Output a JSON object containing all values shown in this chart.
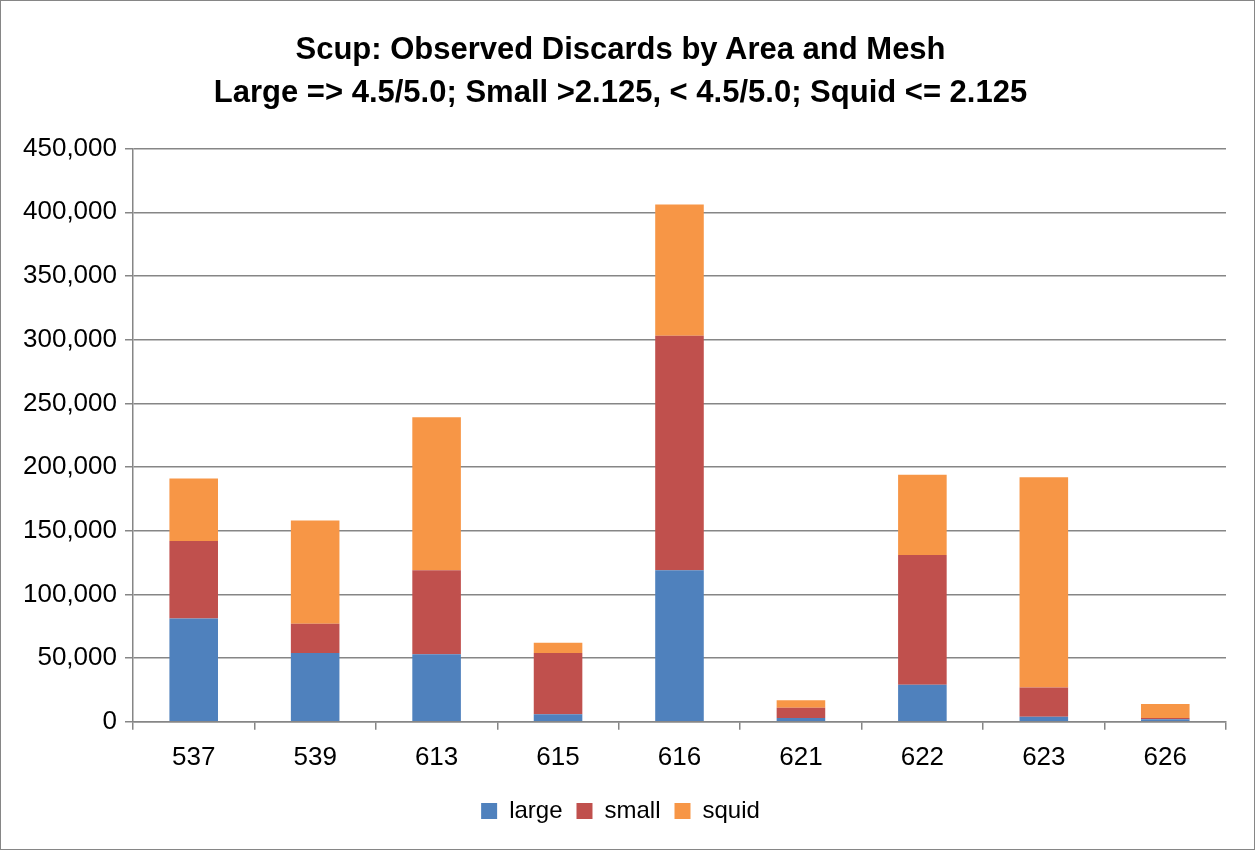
{
  "chart_data": {
    "type": "bar",
    "title": "Scup: Observed Discards by Area and Mesh",
    "subtitle": "Large => 4.5/5.0; Small >2.125, < 4.5/5.0; Squid <= 2.125",
    "categories": [
      "537",
      "539",
      "613",
      "615",
      "616",
      "621",
      "622",
      "623",
      "626"
    ],
    "series": [
      {
        "name": "large",
        "color": "#4f81bd",
        "values": [
          81000,
          54000,
          53000,
          6000,
          119000,
          3000,
          29000,
          4000,
          2000
        ]
      },
      {
        "name": "small",
        "color": "#c0504d",
        "values": [
          61000,
          23000,
          66000,
          48000,
          184000,
          8000,
          102000,
          23000,
          1000
        ]
      },
      {
        "name": "squid",
        "color": "#f79646",
        "values": [
          49000,
          81000,
          120000,
          8000,
          103000,
          6000,
          63000,
          165000,
          11000
        ]
      }
    ],
    "stacked": true,
    "ylim": [
      0,
      450000
    ],
    "yticks": [
      0,
      {
        "value": 50000,
        "label": "50,000"
      },
      {
        "value": 100000,
        "label": "100,000"
      },
      {
        "value": 150000,
        "label": "150,000"
      },
      {
        "value": 200000,
        "label": "200,000"
      },
      {
        "value": 250000,
        "label": "250,000"
      },
      {
        "value": 300000,
        "label": "300,000"
      },
      {
        "value": 350000,
        "label": "350,000"
      },
      {
        "value": 400000,
        "label": "400,000"
      },
      {
        "value": 450000,
        "label": "450,000"
      }
    ],
    "grid": "y",
    "legend": "bottom"
  }
}
